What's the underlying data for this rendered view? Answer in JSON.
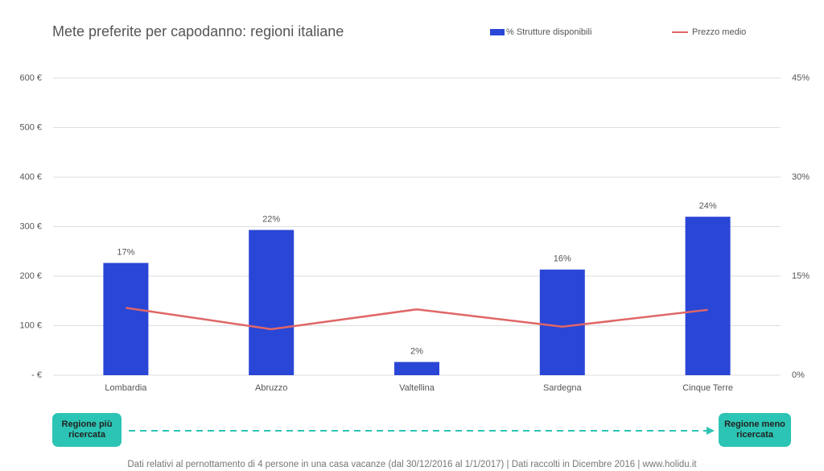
{
  "chart_data": {
    "type": "bar-line",
    "title": "Mete preferite per capodanno: regioni italiane",
    "categories": [
      "Lombardia",
      "Abruzzo",
      "Valtellina",
      "Sardegna",
      "Cinque Terre"
    ],
    "series": [
      {
        "name": "% Strutture disponibili",
        "color": "#2a46d6",
        "type": "bar",
        "axis": "y2",
        "values": [
          17,
          22,
          2,
          16,
          24
        ],
        "value_labels": [
          "17%",
          "22%",
          "2%",
          "16%",
          "24%"
        ]
      },
      {
        "name": "Prezzo medio",
        "color": "#e06666",
        "type": "line",
        "values": [
          136,
          93,
          133,
          98,
          132
        ]
      }
    ],
    "ylim": [
      0,
      600
    ],
    "yticks": [
      {
        "value": 0,
        "label": "- €"
      },
      {
        "value": 100,
        "label": "100 €"
      },
      {
        "value": 200,
        "label": "200 €"
      },
      {
        "value": 300,
        "label": "300 €"
      },
      {
        "value": 400,
        "label": "400 €"
      },
      {
        "value": 500,
        "label": "500 €"
      },
      {
        "value": 600,
        "label": "600 €"
      }
    ],
    "y2lim": [
      0,
      45
    ],
    "y2ticks": [
      {
        "value": 0,
        "label": "0%"
      },
      {
        "value": 15,
        "label": "15%"
      },
      {
        "value": 30,
        "label": "30%"
      },
      {
        "value": 45,
        "label": "45%"
      }
    ],
    "grid": true,
    "legend": "top",
    "annotations": {
      "start": "Regione più ricercata",
      "end": "Regione meno ricercata",
      "arrow_color": "#2cc4b4"
    },
    "footnote": "Dati relativi al pernottamento  di 4 persone  in una casa vacanze (dal 30/12/2016 al 1/1/2017)  | Dati raccolti in Dicembre 2016 | www.holidu.it"
  }
}
